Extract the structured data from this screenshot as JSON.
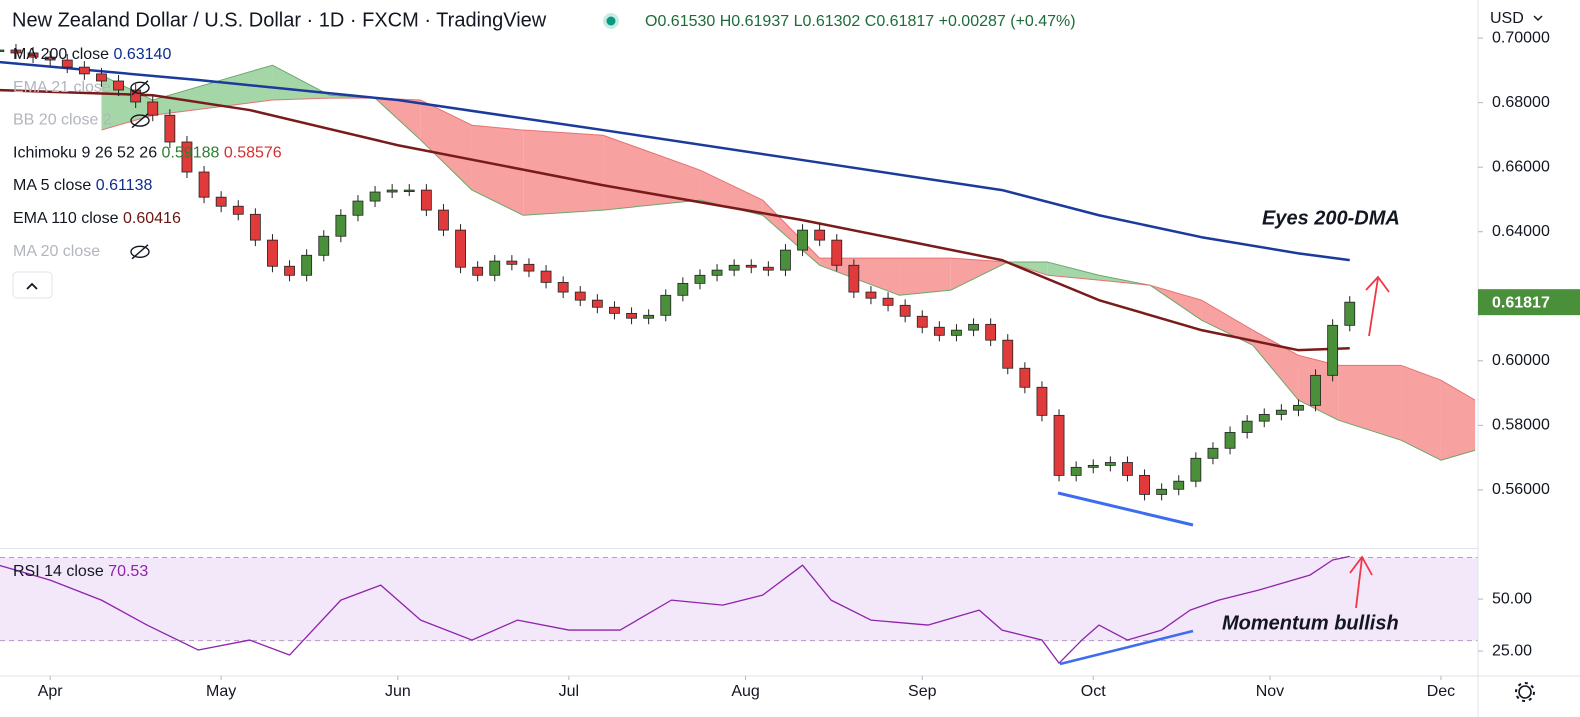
{
  "header": {
    "title": "New Zealand Dollar / U.S. Dollar · 1D · FXCM · TradingView",
    "ohlc": [
      "O0.61530",
      "H0.61937",
      "L0.61302",
      "C0.61817",
      "+0.00287 (+0.47%)"
    ],
    "currency": "USD"
  },
  "legend": [
    {
      "name": "MA 200 close",
      "value": "0.63140",
      "color": "#0d2f8c"
    },
    {
      "name": "EMA 21 close",
      "hidden": true
    },
    {
      "name": "BB 20 close 2",
      "hidden": true
    },
    {
      "name": "Ichimoku 9 26 52 26",
      "value": "0.59188",
      "value2": "0.58576",
      "color": "#2e7d32",
      "color2": "#d32f2f"
    },
    {
      "name": "MA 5 close",
      "value": "0.61138",
      "color": "#0d2f8c"
    },
    {
      "name": "EMA 110 close",
      "value": "0.60416",
      "color": "#6d1414"
    },
    {
      "name": "MA 20 close",
      "hidden": true
    }
  ],
  "chart_data": [
    {
      "type": "candlestick",
      "xlim": [
        82.2,
        341.5
      ],
      "ylim": [
        0.542,
        0.7118
      ],
      "xticks": [
        {
          "value": 91,
          "label": "Apr"
        },
        {
          "value": 121,
          "label": "May"
        },
        {
          "value": 152,
          "label": "Jun"
        },
        {
          "value": 182,
          "label": "Jul"
        },
        {
          "value": 213,
          "label": "Aug"
        },
        {
          "value": 244,
          "label": "Sep"
        },
        {
          "value": 274,
          "label": "Oct"
        },
        {
          "value": 305,
          "label": "Nov"
        },
        {
          "value": 335,
          "label": "Dec"
        }
      ],
      "yticks": [
        {
          "value": 0.56,
          "label": "0.56000"
        },
        {
          "value": 0.58,
          "label": "0.58000"
        },
        {
          "value": 0.6,
          "label": "0.60000"
        },
        {
          "value": 0.64,
          "label": "0.64000"
        },
        {
          "value": 0.66,
          "label": "0.66000"
        },
        {
          "value": 0.68,
          "label": "0.68000"
        },
        {
          "value": 0.7,
          "label": "0.70000"
        }
      ],
      "up_color": "#4a8f3a",
      "down_color": "#e03a3a",
      "x": [
        82,
        85,
        88,
        91,
        94,
        97,
        100,
        103,
        106,
        109,
        112,
        115,
        118,
        121,
        124,
        127,
        130,
        133,
        136,
        139,
        142,
        145,
        148,
        151,
        154,
        157,
        160,
        163,
        166,
        169,
        172,
        175,
        178,
        181,
        184,
        187,
        190,
        193,
        196,
        199,
        202,
        205,
        208,
        211,
        214,
        217,
        220,
        223,
        226,
        229,
        232,
        235,
        238,
        241,
        244,
        247,
        250,
        253,
        256,
        259,
        262,
        265,
        268,
        271,
        274,
        277,
        280,
        283,
        286,
        289,
        292,
        295,
        298,
        301,
        304,
        307,
        310,
        313,
        316,
        319
      ],
      "close": [
        0.6963,
        0.6954,
        0.6941,
        0.6932,
        0.691,
        0.6889,
        0.6867,
        0.6839,
        0.6802,
        0.6761,
        0.6678,
        0.6585,
        0.6507,
        0.6479,
        0.6454,
        0.6374,
        0.6293,
        0.6265,
        0.6327,
        0.6386,
        0.6451,
        0.6495,
        0.6523,
        0.6529,
        0.6529,
        0.6467,
        0.6405,
        0.629,
        0.6265,
        0.6309,
        0.6299,
        0.6278,
        0.6243,
        0.6213,
        0.6188,
        0.6166,
        0.6147,
        0.6132,
        0.6141,
        0.6203,
        0.624,
        0.6265,
        0.6281,
        0.6296,
        0.629,
        0.6281,
        0.6343,
        0.6405,
        0.6374,
        0.6296,
        0.6213,
        0.6194,
        0.6172,
        0.6138,
        0.6104,
        0.6079,
        0.6095,
        0.6113,
        0.6064,
        0.5977,
        0.5918,
        0.5831,
        0.5645,
        0.567,
        0.5676,
        0.5685,
        0.5645,
        0.5586,
        0.5602,
        0.5627,
        0.5698,
        0.5729,
        0.5778,
        0.5813,
        0.5834,
        0.5847,
        0.5862,
        0.5955,
        0.611,
        0.61817
      ],
      "ma200": {
        "color": "#1a3a9c",
        "x": [
          82,
          117,
          152,
          188,
          223,
          258,
          275,
          293,
          310,
          319
        ],
        "values": [
          0.6926,
          0.687,
          0.6808,
          0.6715,
          0.6622,
          0.6529,
          0.6451,
          0.6383,
          0.6333,
          0.6312
        ]
      },
      "ema110": {
        "color": "#7a1b1b",
        "x": [
          82,
          109,
          126,
          152,
          188,
          223,
          258,
          275,
          293,
          310,
          319
        ],
        "values": [
          0.6839,
          0.6823,
          0.6777,
          0.6668,
          0.6544,
          0.6436,
          0.6312,
          0.6188,
          0.6095,
          0.6033,
          0.6039
        ]
      },
      "ichimoku": {
        "bull_color": "#a5d6a7",
        "bear_color": "#f8a1a1",
        "x": [
          100,
          109,
          130,
          140,
          148,
          156,
          165,
          174,
          188,
          205,
          216,
          226,
          240,
          249,
          259,
          266,
          275,
          284,
          293,
          302,
          310,
          317,
          328,
          335,
          341
        ],
        "span_a": [
          0.6885,
          0.6808,
          0.6916,
          0.6823,
          0.6814,
          0.6684,
          0.6529,
          0.6451,
          0.6467,
          0.6498,
          0.6451,
          0.6296,
          0.6203,
          0.6219,
          0.6306,
          0.6306,
          0.6265,
          0.6234,
          0.6126,
          0.6048,
          0.5878,
          0.5816,
          0.5754,
          0.5692,
          0.5723
        ],
        "span_b": [
          0.6715,
          0.6761,
          0.6808,
          0.6814,
          0.6814,
          0.6808,
          0.673,
          0.6715,
          0.6699,
          0.6591,
          0.6498,
          0.6318,
          0.6318,
          0.6318,
          0.6306,
          0.6265,
          0.625,
          0.6234,
          0.6188,
          0.6095,
          0.6017,
          0.5986,
          0.5986,
          0.594,
          0.5878
        ]
      },
      "annotation": "Eyes 200-DMA"
    },
    {
      "type": "line",
      "name": "RSI 14 close",
      "value_label": "70.53",
      "color": "#8e24aa",
      "xlim": [
        82.2,
        341.5
      ],
      "ylim": [
        13.5,
        73.6
      ],
      "band": [
        30,
        70
      ],
      "yticks": [
        {
          "value": 25,
          "label": "25.00"
        },
        {
          "value": 50,
          "label": "50.00"
        }
      ],
      "x": [
        82,
        91,
        100,
        108,
        117,
        126,
        133,
        142,
        149,
        156,
        165,
        173,
        182,
        191,
        200,
        209,
        216,
        223,
        228,
        235,
        245,
        254,
        258,
        265,
        268,
        272,
        275,
        280,
        286,
        291,
        296,
        303,
        309,
        312,
        316,
        319
      ],
      "values": [
        66.3,
        59.1,
        49.5,
        37.5,
        25.5,
        30.3,
        23.1,
        49.5,
        56.7,
        39.9,
        30.3,
        39.9,
        35.1,
        35.1,
        49.5,
        47.1,
        51.9,
        66.3,
        49.5,
        39.9,
        37.5,
        44.7,
        35.1,
        30.3,
        19.2,
        30.3,
        37.5,
        30.3,
        35.1,
        44.7,
        49.5,
        54.3,
        59.1,
        61.5,
        68.8,
        70.53
      ],
      "annotation": "Momentum bullish"
    }
  ]
}
